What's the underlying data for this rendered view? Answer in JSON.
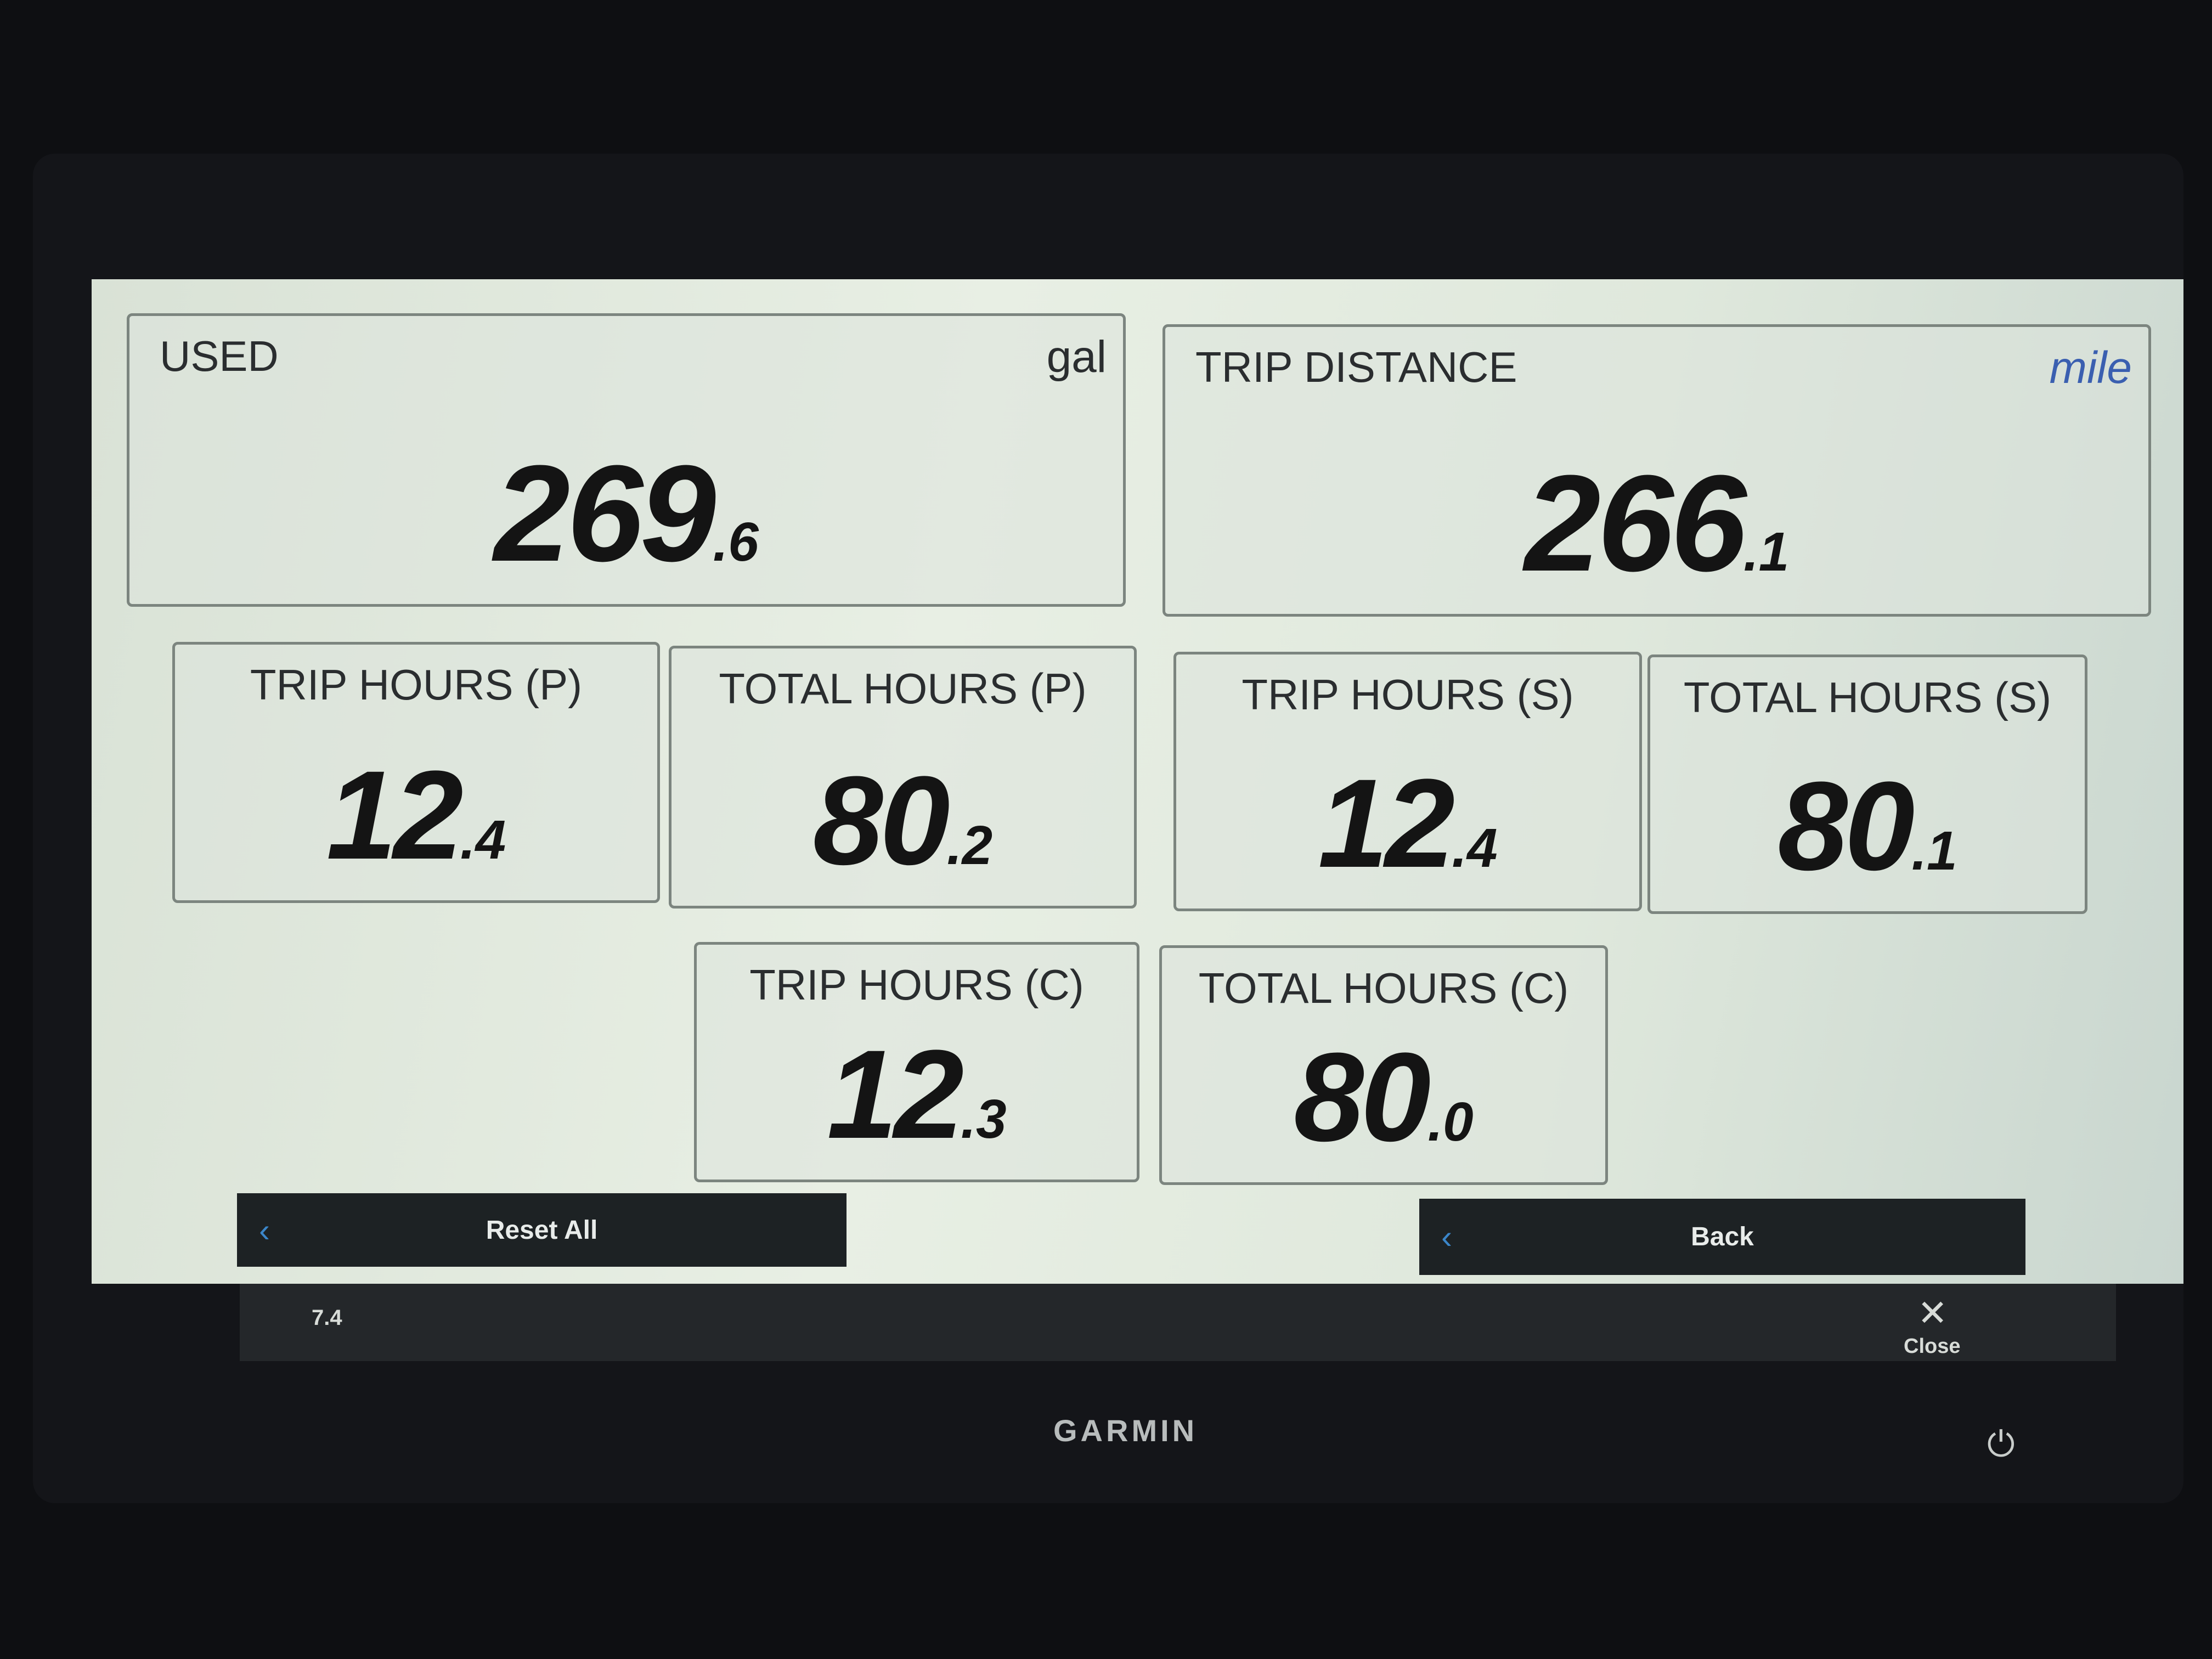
{
  "tiles": {
    "used": {
      "label": "USED",
      "unit": "gal",
      "int": "269",
      "dec": ".6"
    },
    "trip_distance": {
      "label": "TRIP DISTANCE",
      "unit": "mile",
      "int": "266",
      "dec": ".1"
    },
    "trip_hours_p": {
      "label": "TRIP HOURS (P)",
      "int": "12",
      "dec": ".4"
    },
    "total_hours_p": {
      "label": "TOTAL HOURS (P)",
      "int": "80",
      "dec": ".2"
    },
    "trip_hours_s": {
      "label": "TRIP HOURS (S)",
      "int": "12",
      "dec": ".4"
    },
    "total_hours_s": {
      "label": "TOTAL HOURS (S)",
      "int": "80",
      "dec": ".1"
    },
    "trip_hours_c": {
      "label": "TRIP HOURS (C)",
      "int": "12",
      "dec": ".3"
    },
    "total_hours_c": {
      "label": "TOTAL HOURS (C)",
      "int": "80",
      "dec": ".0"
    }
  },
  "buttons": {
    "reset_all": "Reset All",
    "back": "Back",
    "close": "Close"
  },
  "status": {
    "left_text": "7.4"
  },
  "brand": "GARMIN",
  "icons": {
    "chevron": "chevron-left-icon",
    "close": "close-icon",
    "power": "power-icon"
  },
  "colors": {
    "accent": "#3b86c9",
    "unit_blue": "#3a5fb0"
  }
}
